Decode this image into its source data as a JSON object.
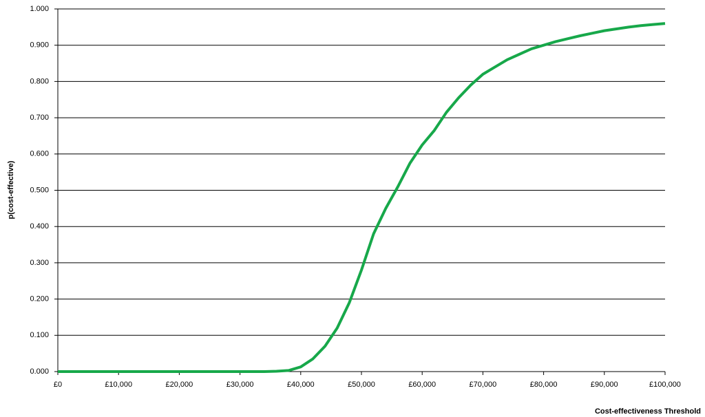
{
  "chart_data": {
    "type": "line",
    "x_label": "Cost-effectiveness  Threshold",
    "y_label": "p(cost-effective)",
    "x": [
      0,
      2000,
      4000,
      6000,
      8000,
      10000,
      12000,
      14000,
      16000,
      18000,
      20000,
      22000,
      24000,
      26000,
      28000,
      30000,
      32000,
      34000,
      36000,
      38000,
      40000,
      42000,
      44000,
      46000,
      48000,
      50000,
      52000,
      54000,
      56000,
      58000,
      60000,
      62000,
      64000,
      66000,
      68000,
      70000,
      72000,
      74000,
      76000,
      78000,
      80000,
      82000,
      84000,
      86000,
      88000,
      90000,
      92000,
      94000,
      96000,
      98000,
      100000
    ],
    "series": [
      {
        "color": "#17a84a",
        "values": [
          0,
          0,
          0,
          0,
          0,
          0,
          0,
          0,
          0,
          0,
          0,
          0,
          0,
          0,
          0,
          0,
          0,
          0,
          0.001,
          0.003,
          0.013,
          0.035,
          0.07,
          0.12,
          0.19,
          0.28,
          0.38,
          0.45,
          0.51,
          0.575,
          0.625,
          0.665,
          0.715,
          0.755,
          0.79,
          0.82,
          0.84,
          0.86,
          0.875,
          0.89,
          0.9,
          0.91,
          0.918,
          0.926,
          0.933,
          0.94,
          0.945,
          0.95,
          0.954,
          0.957,
          0.96
        ]
      }
    ],
    "xlim": [
      0,
      100000
    ],
    "xticks": [
      {
        "value": 0,
        "label": "£0"
      },
      {
        "value": 10000,
        "label": "£10,000"
      },
      {
        "value": 20000,
        "label": "£20,000"
      },
      {
        "value": 30000,
        "label": "£30,000"
      },
      {
        "value": 40000,
        "label": "£40,000"
      },
      {
        "value": 50000,
        "label": "£50,000"
      },
      {
        "value": 60000,
        "label": "£60,000"
      },
      {
        "value": 70000,
        "label": "£70,000"
      },
      {
        "value": 80000,
        "label": "£80,000"
      },
      {
        "value": 90000,
        "label": "£90,000"
      },
      {
        "value": 100000,
        "label": "£100,000"
      }
    ],
    "ylim": [
      0,
      1
    ],
    "yticks": [
      {
        "value": 0,
        "label": "0.000"
      },
      {
        "value": 0.1,
        "label": "0.100"
      },
      {
        "value": 0.2,
        "label": "0.200"
      },
      {
        "value": 0.3,
        "label": "0.300"
      },
      {
        "value": 0.4,
        "label": "0.400"
      },
      {
        "value": 0.5,
        "label": "0.500"
      },
      {
        "value": 0.6,
        "label": "0.600"
      },
      {
        "value": 0.7,
        "label": "0.700"
      },
      {
        "value": 0.8,
        "label": "0.800"
      },
      {
        "value": 0.9,
        "label": "0.900"
      },
      {
        "value": 1,
        "label": "1.000"
      }
    ],
    "grid": true
  }
}
